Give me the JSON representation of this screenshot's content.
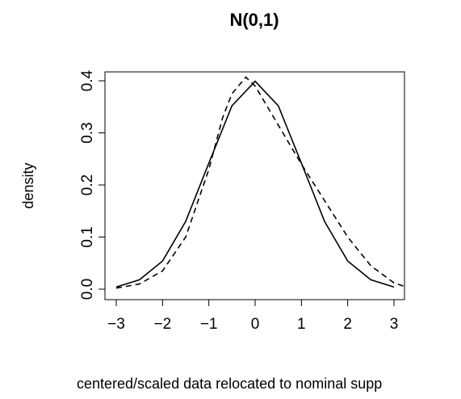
{
  "chart_data": {
    "type": "line",
    "title": "N(0,1)",
    "xlabel": "centered/scaled data relocated to nominal supp",
    "ylabel": "density",
    "xlim": [
      -3.1,
      3.2
    ],
    "ylim": [
      0,
      0.4
    ],
    "xticks": [
      -3,
      -2,
      -1,
      0,
      1,
      2,
      3
    ],
    "xtick_labels": [
      "−3",
      "−2",
      "−1",
      "0",
      "1",
      "2",
      "3"
    ],
    "yticks": [
      0.0,
      0.1,
      0.2,
      0.3,
      0.4
    ],
    "ytick_labels": [
      "0.0",
      "0.1",
      "0.2",
      "0.3",
      "0.4"
    ],
    "grid": false,
    "series": [
      {
        "style": "solid",
        "x": [
          -3.0,
          -2.5,
          -2.0,
          -1.5,
          -1.0,
          -0.5,
          0.0,
          0.5,
          1.0,
          1.5,
          2.0,
          2.5,
          3.0
        ],
        "y": [
          0.004,
          0.018,
          0.054,
          0.13,
          0.242,
          0.352,
          0.399,
          0.352,
          0.242,
          0.13,
          0.054,
          0.018,
          0.004
        ]
      },
      {
        "style": "dashed",
        "x": [
          -3.0,
          -2.5,
          -2.0,
          -1.5,
          -1.0,
          -0.7,
          -0.5,
          -0.2,
          0.0,
          0.3,
          0.6,
          1.0,
          1.5,
          2.0,
          2.5,
          3.0,
          3.2
        ],
        "y": [
          0.002,
          0.01,
          0.035,
          0.1,
          0.23,
          0.33,
          0.375,
          0.407,
          0.39,
          0.345,
          0.3,
          0.24,
          0.17,
          0.1,
          0.045,
          0.012,
          0.006
        ]
      }
    ]
  }
}
